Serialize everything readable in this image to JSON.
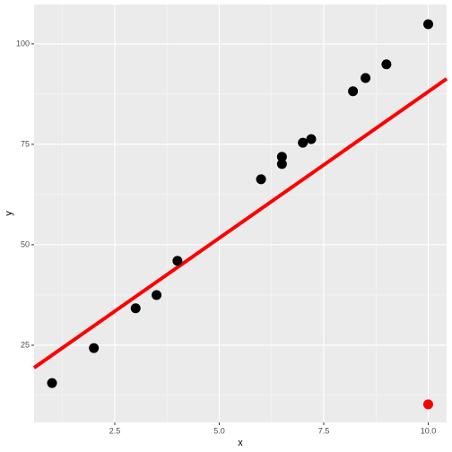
{
  "chart_data": {
    "type": "scatter",
    "x_label": "x",
    "y_label": "y",
    "xlim": [
      0.57,
      10.44
    ],
    "ylim": [
      5.8,
      109.8
    ],
    "xticks": [
      2.5,
      {
        "value": 5,
        "label": "5.0"
      },
      7.5,
      {
        "value": 10,
        "label": "10.0"
      }
    ],
    "yticks": [
      25,
      50,
      75,
      100
    ],
    "grid": true,
    "series": [
      {
        "color": "#000000",
        "x": [
          1,
          2,
          3,
          3.5,
          4,
          6,
          6.5,
          6.5,
          7,
          7.2,
          8.2,
          8.5,
          9,
          10
        ],
        "values": [
          15.6,
          24.3,
          34.2,
          37.5,
          46,
          66.3,
          71.9,
          70.1,
          75.4,
          76.3,
          88.2,
          91.5,
          94.9,
          104.9
        ]
      },
      {
        "color": "#ff0000",
        "x": [
          10
        ],
        "values": [
          10.3
        ]
      }
    ],
    "fit_line": {
      "color": "#ff0000",
      "x": [
        0.57,
        10.44
      ],
      "values": [
        19.4,
        91.3
      ]
    }
  }
}
